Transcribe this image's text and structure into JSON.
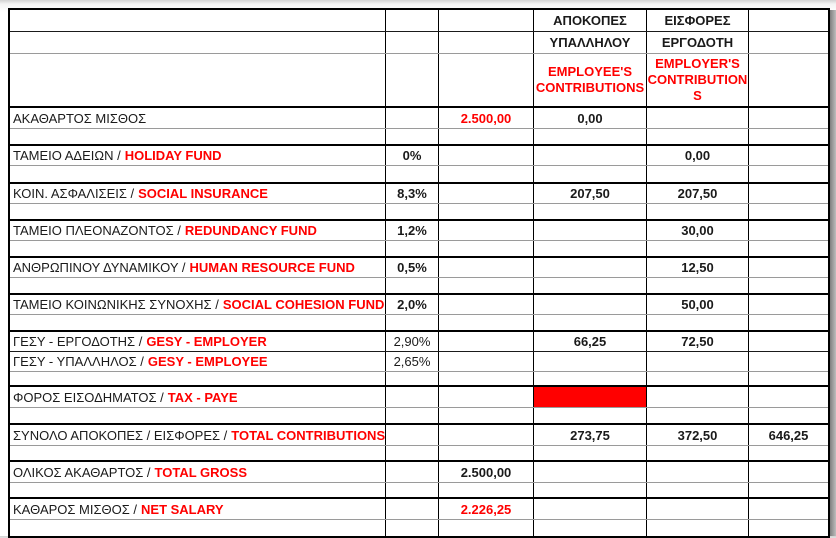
{
  "table": {
    "header": {
      "employee_col_line1": "ΑΠΟΚΟΠΕΣ",
      "employee_col_line2": "ΥΠΑΛΛΗΛΟΥ",
      "employer_col_line1": "ΕΙΣΦΟΡΕΣ",
      "employer_col_line2": "ΕΡΓΟΔΟΤΗ",
      "employee_contrib_lines": [
        "EMPLOYEE'S",
        "CONTRIBUTIONS"
      ],
      "employer_contrib_lines": [
        "EMPLOYER'S",
        "CONTRIBUTION",
        "S"
      ]
    },
    "rows": [
      {
        "label_gr": "ΑΚΑΘΑΡΤΟΣ ΜΙΣΘΟΣ",
        "label_en": "",
        "pct": "",
        "value": "2.500,00",
        "employee": "0,00",
        "employer": "",
        "total": ""
      },
      {
        "label_gr": "ΤΑΜΕΙΟ ΑΔΕΙΩΝ /",
        "label_en": "HOLIDAY FUND",
        "pct": "0%",
        "value": "",
        "employee": "",
        "employer": "0,00",
        "total": ""
      },
      {
        "label_gr": "ΚΟΙΝ. ΑΣΦΑΛΙΣΕΙΣ /",
        "label_en": "SOCIAL INSURANCE",
        "pct": "8,3%",
        "value": "",
        "employee": "207,50",
        "employer": "207,50",
        "total": ""
      },
      {
        "label_gr": "ΤΑΜΕΙΟ ΠΛΕΟΝΑΖΟΝΤΟΣ  /",
        "label_en": "REDUNDANCY FUND",
        "pct": "1,2%",
        "value": "",
        "employee": "",
        "employer": "30,00",
        "total": ""
      },
      {
        "label_gr": "ΑΝΘΡΩΠΙΝΟΥ ΔΥΝΑΜΙΚΟΥ /",
        "label_en": "HUMAN RESOURCE FUND",
        "pct": "0,5%",
        "value": "",
        "employee": "",
        "employer": "12,50",
        "total": ""
      },
      {
        "label_gr": "ΤΑΜΕΙΟ ΚΟΙΝΩΝΙΚΗΣ ΣΥΝΟΧΗΣ /",
        "label_en": "SOCIAL COHESION FUND",
        "pct": "2,0%",
        "value": "",
        "employee": "",
        "employer": "50,00",
        "total": ""
      },
      {
        "label_gr": "ΓΕΣΥ - ΕΡΓΟΔΟΤΗΣ /",
        "label_en": "GESY - EMPLOYER",
        "pct": "2,90%",
        "value": "",
        "employee": "66,25",
        "employer": "72,50",
        "total": ""
      },
      {
        "label_gr": "ΓΕΣΥ - ΥΠΑΛΛΗΛΟΣ  /",
        "label_en": "GESY - EMPLOYEE",
        "pct": "2,65%",
        "value": "",
        "employee": "",
        "employer": "",
        "total": ""
      },
      {
        "label_gr": "ΦΟΡΟΣ ΕΙΣΟΔΗΜΑΤΟΣ /",
        "label_en": "TAX - PAYE",
        "pct": "",
        "value": "",
        "employee": "",
        "employer": "",
        "total": ""
      },
      {
        "label_gr": "ΣΥΝΟΛΟ ΑΠΟΚΟΠΕΣ / ΕΙΣΦΟΡΕΣ /",
        "label_en": "TOTAL CONTRIBUTIONS",
        "pct": "",
        "value": "",
        "employee": "273,75",
        "employer": "372,50",
        "total": "646,25"
      },
      {
        "label_gr": "ΟΛΙΚΟΣ ΑΚΑΘΑΡΤΟΣ /",
        "label_en": "TOTAL GROSS",
        "pct": "",
        "value": "2.500,00",
        "employee": "",
        "employer": "",
        "total": ""
      },
      {
        "label_gr": "ΚΑΘΑΡΟΣ ΜΙΣΘΟΣ /",
        "label_en": "NET SALARY",
        "pct": "",
        "value": "2.226,25",
        "employee": "",
        "employer": "",
        "total": ""
      }
    ]
  },
  "colors": {
    "accent_red": "#FF0000",
    "grid_black": "#000000",
    "grid_gray": "#9A9A9A",
    "tax_cell_fill": "#FF0000"
  }
}
